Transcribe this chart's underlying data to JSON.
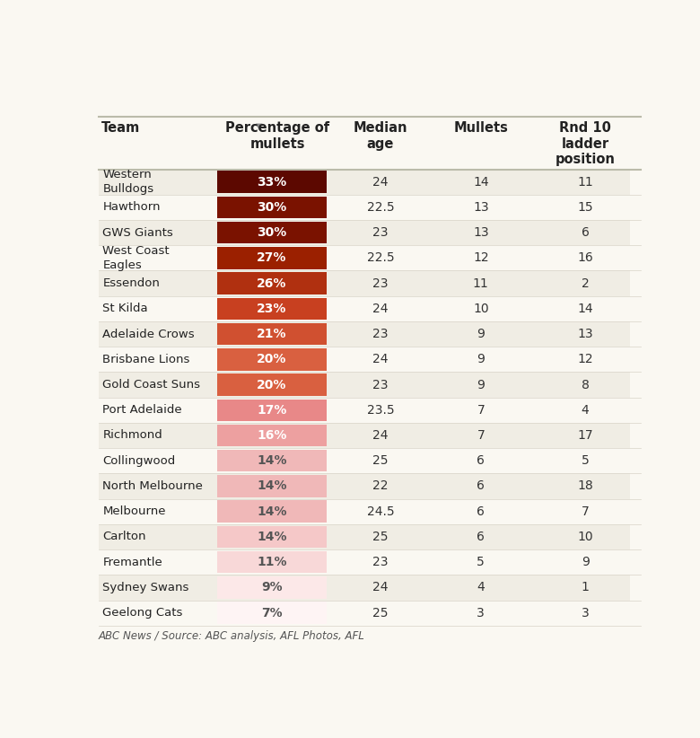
{
  "background_color": "#faf8f2",
  "teams": [
    "Western\nBulldogs",
    "Hawthorn",
    "GWS Giants",
    "West Coast\nEagles",
    "Essendon",
    "St Kilda",
    "Adelaide Crows",
    "Brisbane Lions",
    "Gold Coast Suns",
    "Port Adelaide",
    "Richmond",
    "Collingwood",
    "North Melbourne",
    "Melbourne",
    "Carlton",
    "Fremantle",
    "Sydney Swans",
    "Geelong Cats"
  ],
  "pct_labels": [
    "33%",
    "30%",
    "30%",
    "27%",
    "26%",
    "23%",
    "21%",
    "20%",
    "20%",
    "17%",
    "16%",
    "14%",
    "14%",
    "14%",
    "14%",
    "11%",
    "9%",
    "7%"
  ],
  "median_age": [
    "24",
    "22.5",
    "23",
    "22.5",
    "23",
    "24",
    "23",
    "24",
    "23",
    "23.5",
    "24",
    "25",
    "22",
    "24.5",
    "25",
    "23",
    "24",
    "25"
  ],
  "mullets": [
    "14",
    "13",
    "13",
    "12",
    "11",
    "10",
    "9",
    "9",
    "9",
    "7",
    "7",
    "6",
    "6",
    "6",
    "6",
    "5",
    "4",
    "3"
  ],
  "ladder_pos": [
    "11",
    "15",
    "6",
    "16",
    "2",
    "14",
    "13",
    "12",
    "8",
    "4",
    "17",
    "5",
    "18",
    "7",
    "10",
    "9",
    "1",
    "3"
  ],
  "cell_colors": [
    "#5c0800",
    "#7a1200",
    "#7a1200",
    "#9b2000",
    "#b03010",
    "#c84020",
    "#d05030",
    "#d96040",
    "#d96040",
    "#e88888",
    "#eda0a0",
    "#f0b8b8",
    "#f0b8b8",
    "#f0b8b8",
    "#f5c8c8",
    "#f8d8d8",
    "#fce8e8",
    "#fef4f4"
  ],
  "text_colors_pct": [
    "white",
    "white",
    "white",
    "white",
    "white",
    "white",
    "white",
    "white",
    "white",
    "white",
    "white",
    "#555555",
    "#555555",
    "#555555",
    "#555555",
    "#555555",
    "#555555",
    "#555555"
  ],
  "col_headers": [
    "Team",
    "Percentage of\nmullets",
    "Median\nage",
    "Mullets",
    "Rnd 10\nladder\nposition"
  ],
  "footer": "ABC News / Source: ABC analysis, AFL Photos, AFL"
}
